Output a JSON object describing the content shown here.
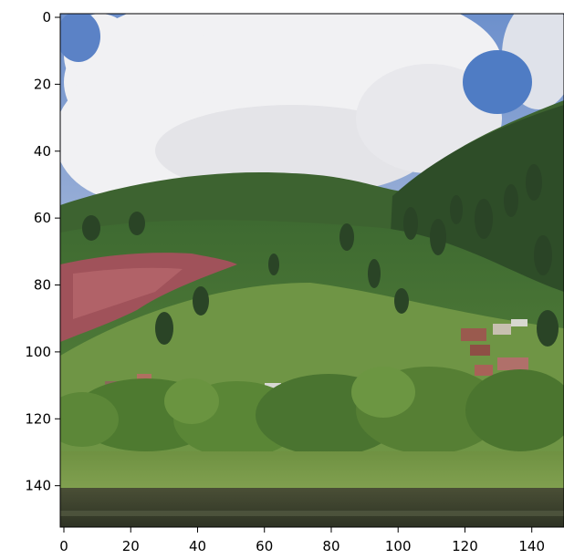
{
  "image": {
    "description_colors": {
      "sky": "#5c84c8",
      "cloud": "#f0f0f2",
      "forest_dark": "#2f4f2a",
      "forest_mid": "#4f7a36",
      "grass_light": "#7f9e4e",
      "red_cliff": "#a4545c",
      "water": "#3b3e2a"
    }
  },
  "axes": {
    "x_ticks": [
      "0",
      "20",
      "40",
      "60",
      "80",
      "100",
      "120",
      "140"
    ],
    "y_ticks": [
      "0",
      "20",
      "40",
      "60",
      "80",
      "100",
      "120",
      "140"
    ],
    "x_range": [
      0,
      148
    ],
    "y_range": [
      0,
      148
    ]
  }
}
